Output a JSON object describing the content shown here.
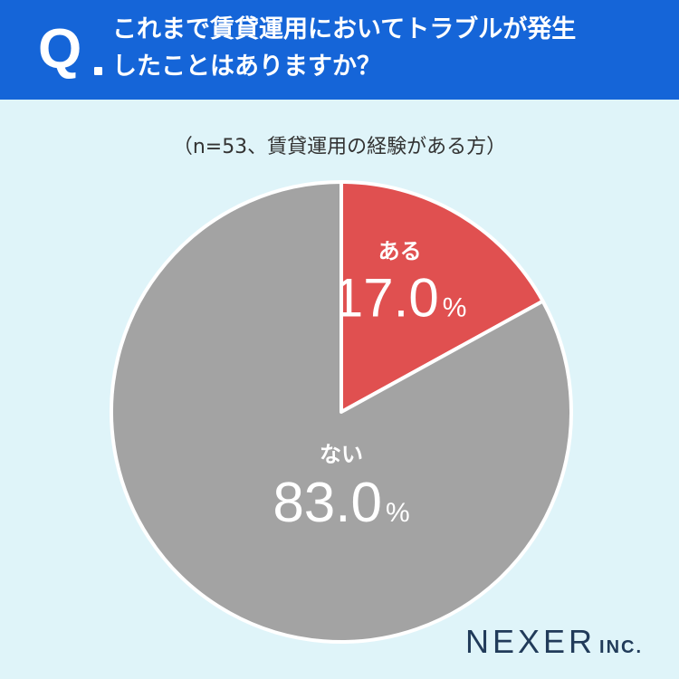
{
  "header": {
    "q_label": "Q",
    "question_line1": "これまで賃貸運用においてトラブルが発生",
    "question_line2": "したことはありますか？",
    "background_color": "#1565d8"
  },
  "sample_note": "（n=53、賃貸運用の経験がある方）",
  "chart_data": {
    "type": "pie",
    "title": "これまで賃貸運用においてトラブルが発生したことはありますか？",
    "slices": [
      {
        "label": "ある",
        "value": 17.0,
        "value_text": "17.0",
        "unit": "%",
        "color": "#e05050"
      },
      {
        "label": "ない",
        "value": 83.0,
        "value_text": "83.0",
        "unit": "%",
        "color": "#a3a3a3"
      }
    ],
    "start_angle": "12 o'clock, clockwise"
  },
  "logo": {
    "main": "NEXER",
    "suffix": "INC."
  }
}
